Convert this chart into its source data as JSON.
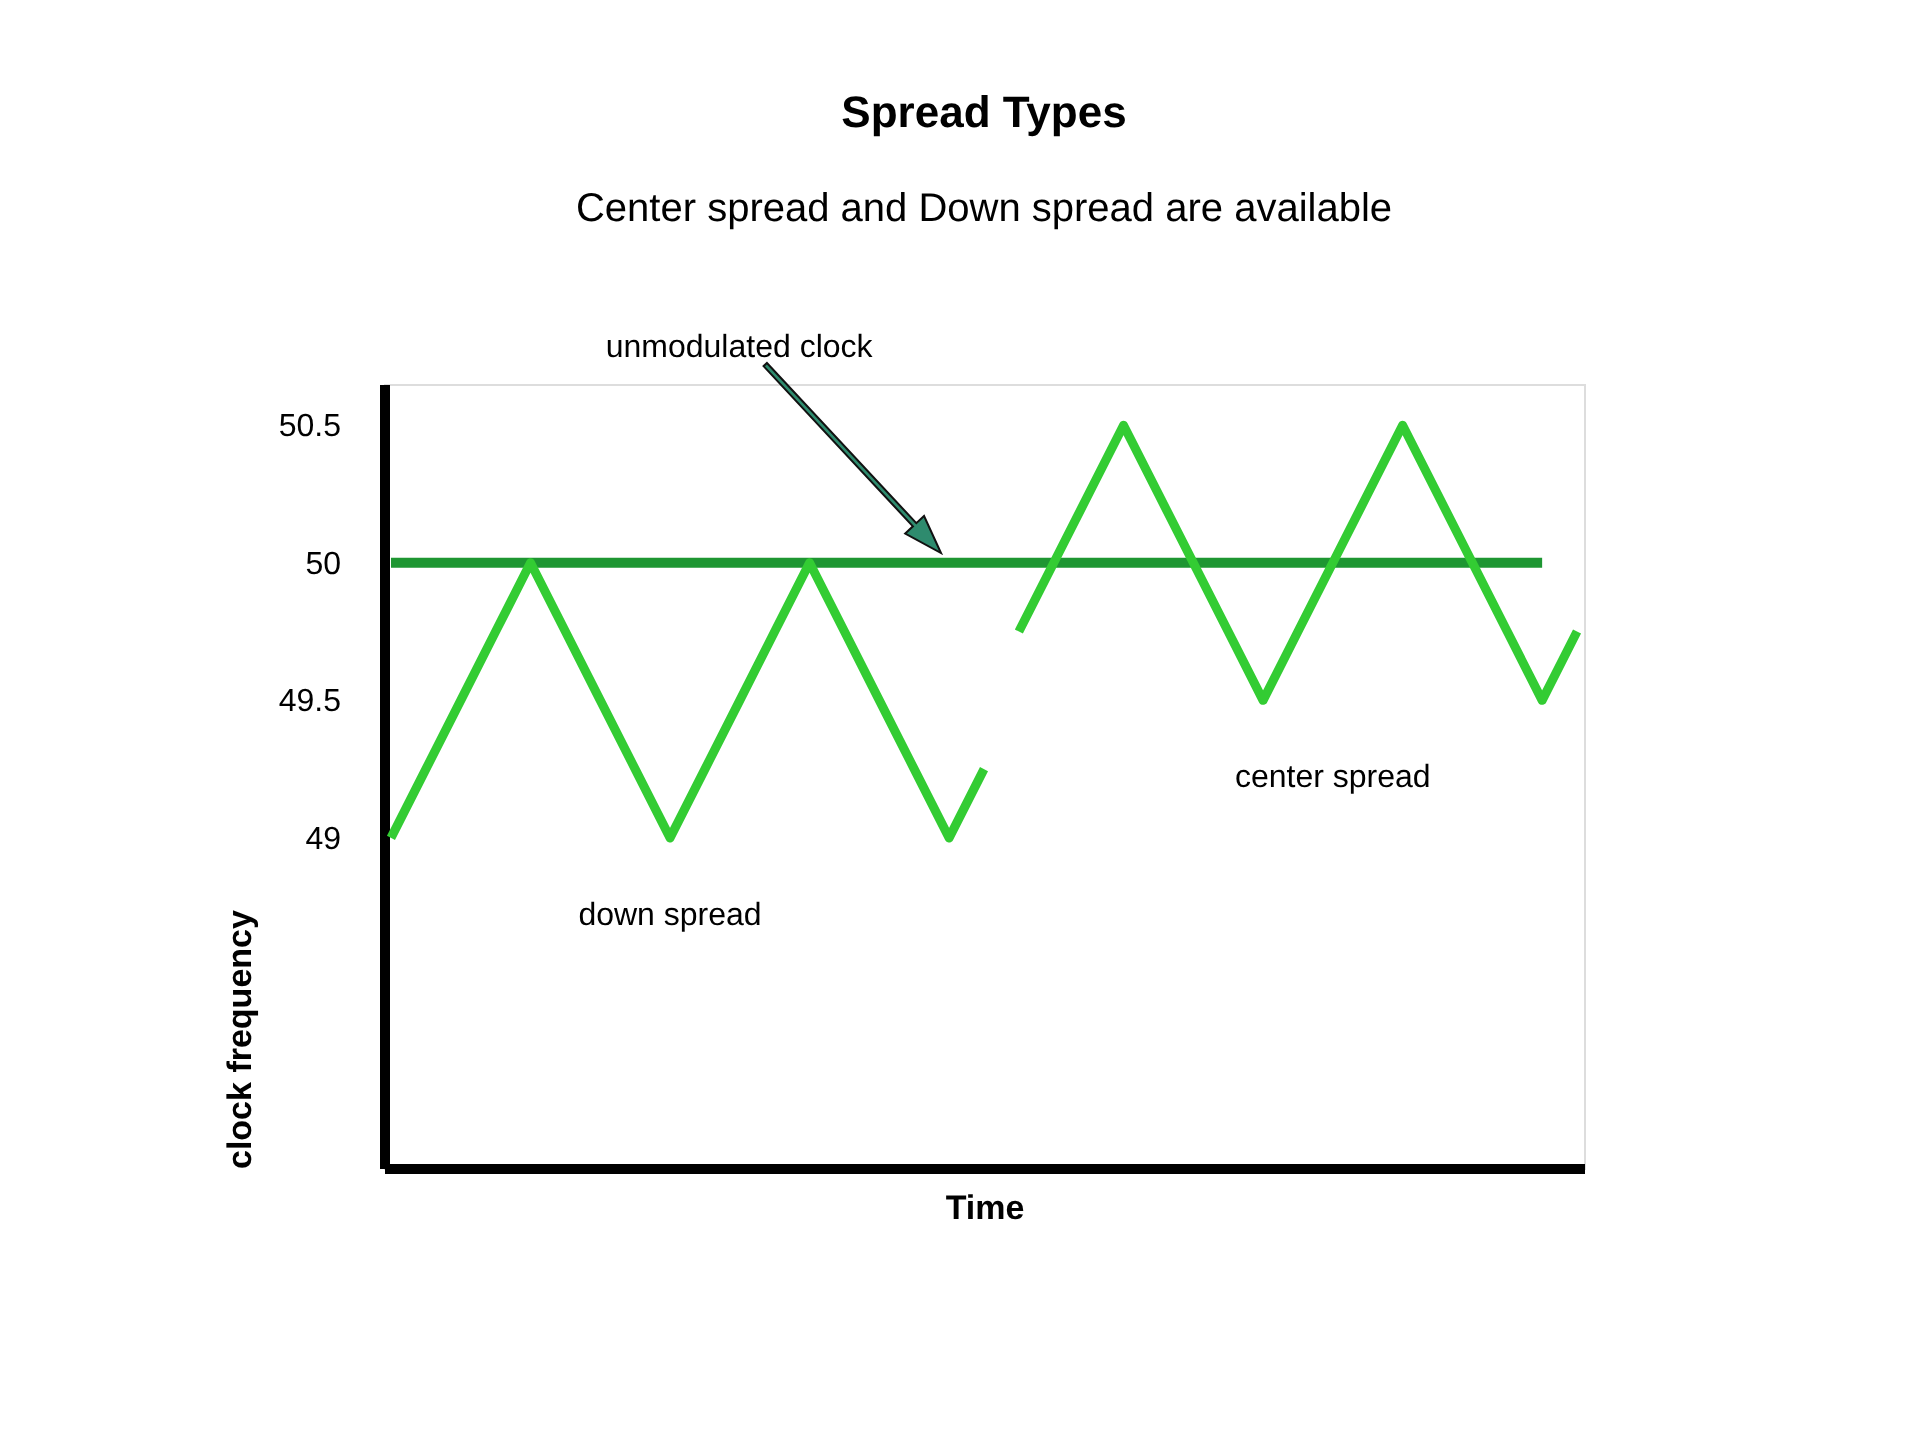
{
  "chart_data": {
    "type": "line",
    "title": "Spread Types",
    "subtitle": "Center spread and Down spread are available",
    "xlabel": "Time",
    "ylabel": "clock frequency",
    "categories": [
      null,
      null,
      null,
      null,
      null,
      null,
      null,
      null,
      null,
      null,
      null,
      null,
      null,
      null,
      null,
      null,
      null,
      null,
      null,
      null,
      null,
      null,
      null,
      null,
      null,
      null,
      null,
      null,
      null,
      null,
      null,
      null,
      null,
      null,
      null
    ],
    "series": [
      {
        "color": "#1e9632",
        "values": [
          50,
          50,
          50,
          50,
          50,
          50,
          50,
          50,
          50,
          50,
          50,
          50,
          50,
          50,
          50,
          50,
          50,
          50,
          50,
          50,
          50,
          50,
          50,
          50,
          50,
          50,
          50,
          50,
          50,
          50,
          50,
          50,
          50,
          50,
          null
        ]
      },
      {
        "name": "down spread",
        "color": "#33cc33",
        "values": [
          49,
          49.25,
          49.5,
          49.75,
          50,
          49.75,
          49.5,
          49.25,
          49,
          49.25,
          49.5,
          49.75,
          50,
          49.75,
          49.5,
          49.25,
          49,
          49.25,
          null,
          null,
          null,
          null,
          null,
          null,
          null,
          null,
          null,
          null,
          null,
          null,
          null,
          null,
          null,
          null,
          null
        ]
      },
      {
        "name": "center spread",
        "color": "#33cc33",
        "values": [
          null,
          null,
          null,
          null,
          null,
          null,
          null,
          null,
          null,
          null,
          null,
          null,
          null,
          null,
          null,
          null,
          null,
          null,
          49.75,
          50,
          50.25,
          50.5,
          50.25,
          50,
          49.75,
          49.5,
          49.75,
          50,
          50.25,
          50.5,
          50.25,
          50,
          49.75,
          49.5,
          49.75
        ]
      }
    ],
    "ylim": [
      47.8,
      50.65
    ],
    "yticks": [
      49,
      49.5,
      50,
      50.5
    ],
    "annotations": [
      "unmodulated clock"
    ],
    "tick_labels": "y",
    "grid": false,
    "marker": "none",
    "line_style": "solid"
  }
}
